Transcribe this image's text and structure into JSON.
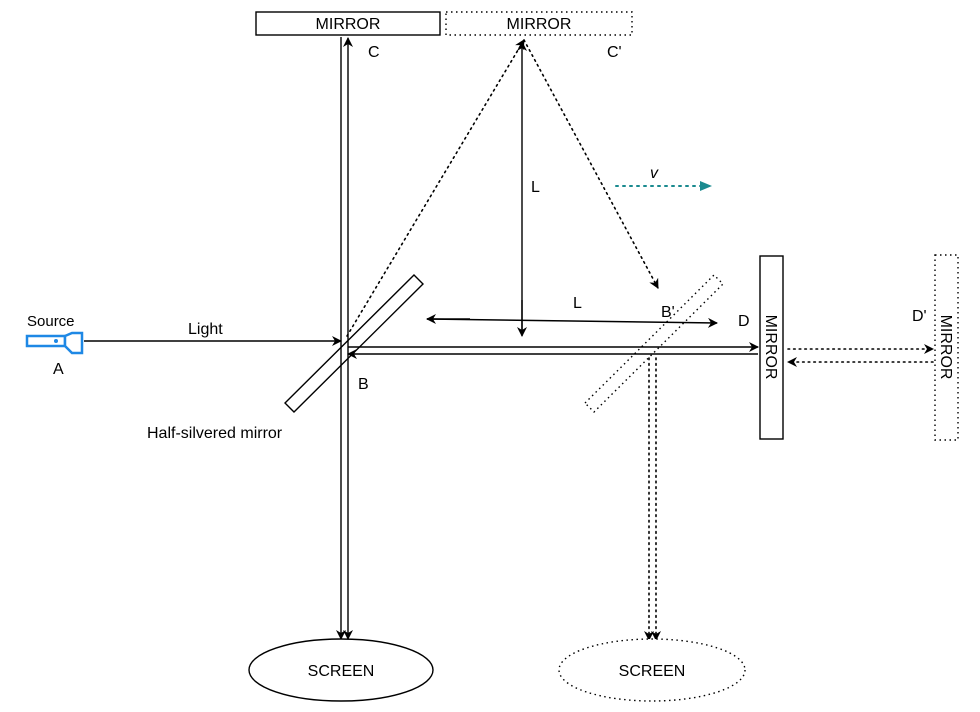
{
  "diagram": {
    "mirror_c_label": "MIRROR",
    "mirror_c_prime_label": "MIRROR",
    "mirror_d_label": "MIRROR",
    "mirror_d_prime_label": "MIRROR",
    "screen_label": "SCREEN",
    "screen_prime_label": "SCREEN",
    "source_label": "Source",
    "point_a": "A",
    "point_b": "B",
    "point_b_prime": "B'",
    "point_c": "C",
    "point_c_prime": "C'",
    "point_d": "D",
    "point_d_prime": "D'",
    "light_label": "Light",
    "half_silvered_label": "Half-silvered mirror",
    "length_vertical": "L",
    "length_horizontal": "L",
    "velocity_label": "v",
    "colors": {
      "source_icon": "#1e88e5",
      "velocity_arrow": "#1a8a8f",
      "line": "#000000"
    },
    "icons": {
      "source": "flashlight-icon"
    }
  }
}
